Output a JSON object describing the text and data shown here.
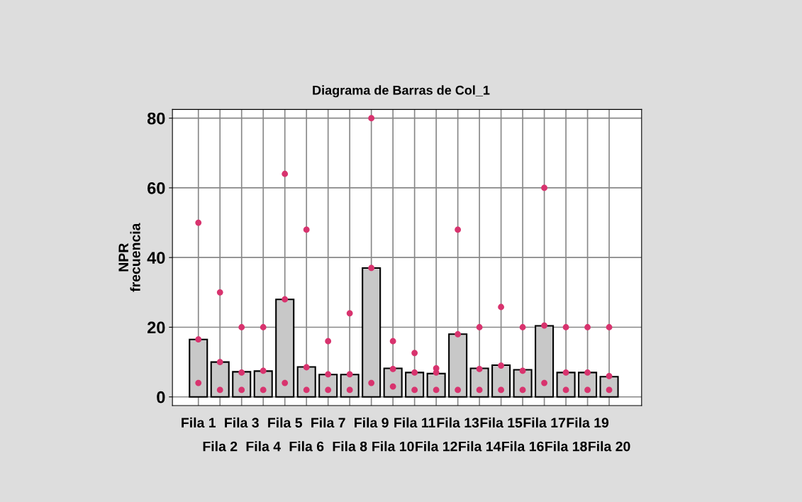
{
  "chart_data": {
    "type": "bar",
    "title": "Diagrama de Barras de Col_1",
    "ylabel": "NPR\nfrecuencia",
    "categories": [
      "Fila 1",
      "Fila 2",
      "Fila 3",
      "Fila 4",
      "Fila 5",
      "Fila 6",
      "Fila 7",
      "Fila 8",
      "Fila 9",
      "Fila 10",
      "Fila 11",
      "Fila 12",
      "Fila 13",
      "Fila 14",
      "Fila 15",
      "Fila 16",
      "Fila 17",
      "Fila 18",
      "Fila 19",
      "Fila 20"
    ],
    "series": [
      {
        "color": "#c8c8c8",
        "values": [
          16.5,
          10,
          7.2,
          7.4,
          28,
          8.6,
          6.4,
          6.4,
          37,
          8.2,
          7,
          6.7,
          18,
          8.2,
          9.1,
          7.8,
          20.4,
          7,
          7,
          5.8
        ]
      },
      {
        "type": "scatter",
        "color": "#d8336e",
        "values": [
          50,
          30,
          20,
          20,
          64,
          48,
          16,
          24,
          80,
          16,
          12.6,
          8.2,
          48,
          20,
          25.8,
          20,
          60,
          20,
          20,
          20
        ]
      },
      {
        "type": "scatter",
        "color": "#d8336e",
        "values": [
          16.5,
          10,
          7,
          7.5,
          28,
          8.5,
          6.5,
          6.5,
          37,
          8,
          7,
          7,
          18,
          8,
          9,
          7.5,
          20.5,
          7,
          7,
          6
        ]
      },
      {
        "type": "scatter",
        "color": "#d8336e",
        "values": [
          4,
          2,
          2,
          2,
          4,
          2,
          2,
          2,
          4,
          3,
          2,
          2,
          2,
          2,
          2,
          2,
          4,
          2,
          2,
          2
        ]
      }
    ],
    "ylim": [
      -2.5,
      82.5
    ],
    "yticks": [
      0,
      20,
      40,
      60,
      80
    ],
    "grid": true,
    "marker": "circle"
  }
}
